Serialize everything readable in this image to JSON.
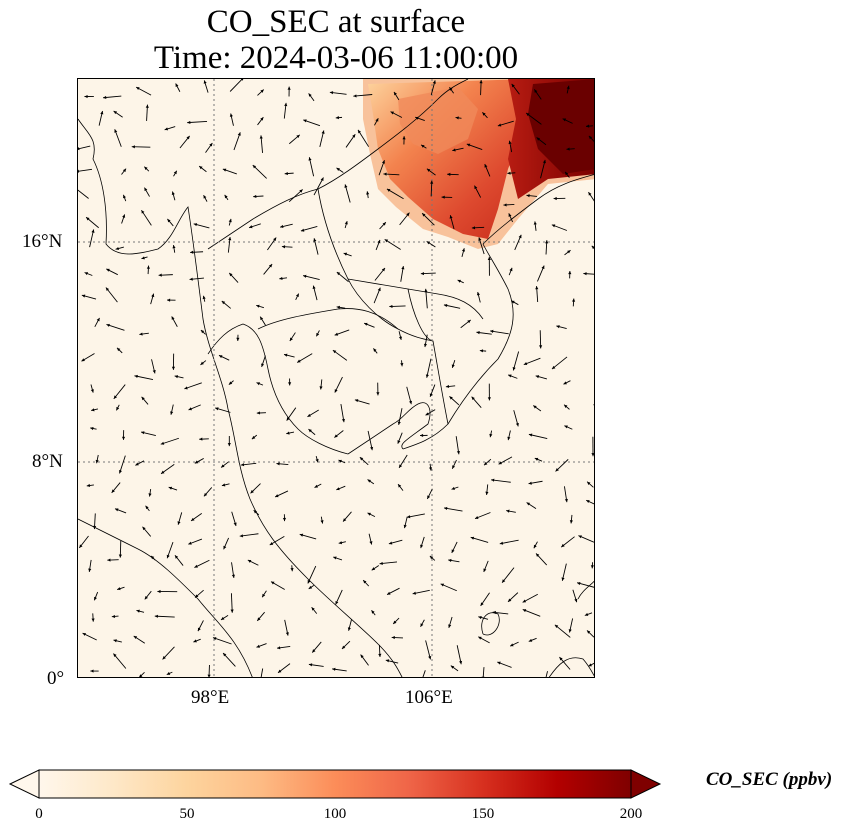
{
  "title": {
    "line1": "CO_SEC at surface",
    "line2": "Time: 2024-03-06 11:00:00"
  },
  "axes": {
    "lat_ticks": [
      "16°N",
      "8°N",
      "0°"
    ],
    "lon_ticks": [
      "98°E",
      "106°E"
    ]
  },
  "colorbar": {
    "label": "CO_SEC (ppbv)",
    "ticks": [
      "0",
      "50",
      "100",
      "150",
      "200"
    ],
    "colormap": "OrRd",
    "range": [
      0,
      200
    ],
    "extend": "both"
  },
  "colors": {
    "low": "#fff7ec",
    "mid": "#fc8d59",
    "high": "#7f0000",
    "frame": "#000000"
  },
  "chart_data": {
    "type": "heatmap",
    "variable": "CO_SEC",
    "units": "ppbv",
    "lon_range": [
      93,
      112
    ],
    "lat_range": [
      0,
      22
    ],
    "grid": true,
    "plume": "high CO_SEC over northern Vietnam / southern China, max >200 ppbv at northeast corner; background near 0 elsewhere",
    "vectors": "wind arrows overlaid across domain"
  }
}
